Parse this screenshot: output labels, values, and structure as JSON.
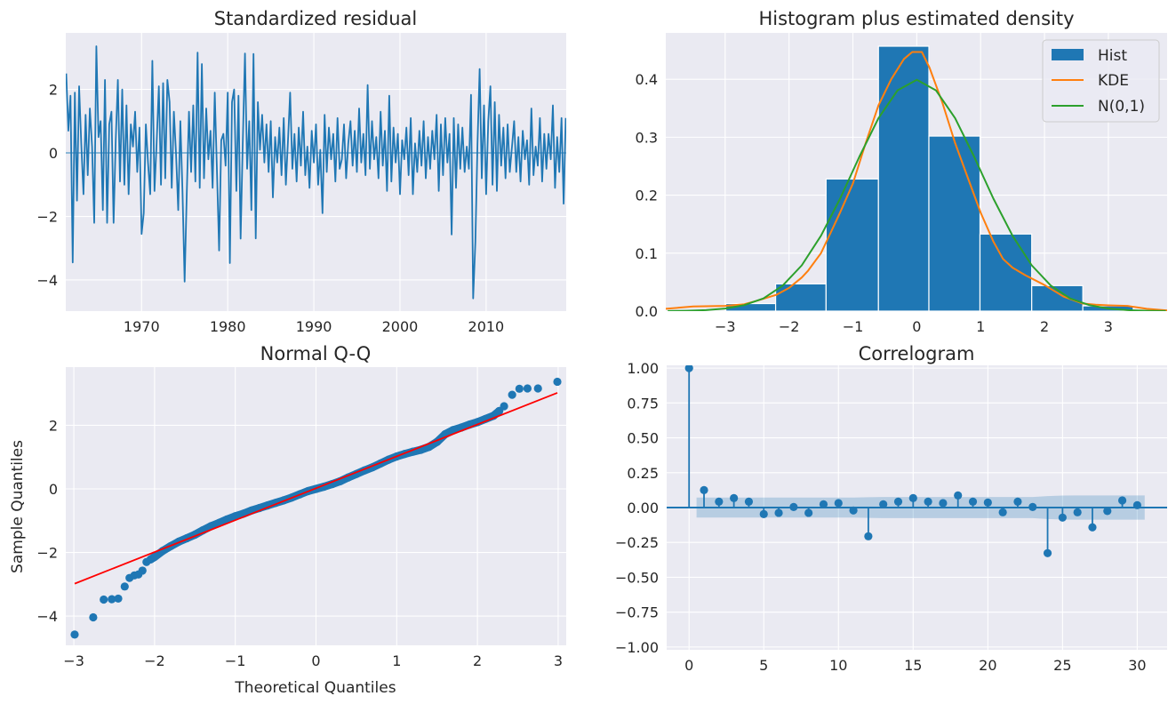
{
  "colors": {
    "background": "#eaeaf2",
    "grid": "#ffffff",
    "blue": "#1f77b4",
    "orange": "#ff7f0e",
    "green": "#2ca02c",
    "red": "#ff0000",
    "text": "#262626"
  },
  "chart_data": [
    {
      "id": "residual",
      "type": "line",
      "title": "Standardized residual",
      "xlabel": "",
      "ylabel": "",
      "xlim": [
        1961.2,
        2019.3
      ],
      "ylim": [
        -4.98,
        3.78
      ],
      "grid": true,
      "xticks": [
        1970,
        1980,
        1990,
        2000,
        2010
      ],
      "xtick_labels": [
        "1970",
        "1980",
        "1990",
        "2000",
        "2010"
      ],
      "yticks": [
        2,
        0,
        -2,
        -4
      ],
      "ytick_labels": [
        "2",
        "0",
        "−2",
        "−4"
      ],
      "x_start": 1961.25,
      "x_step": 0.25,
      "values": [
        2.5,
        0.7,
        1.8,
        -3.45,
        1.9,
        -1.5,
        2.1,
        0.3,
        -1.3,
        1.2,
        -0.7,
        1.4,
        0.2,
        -2.2,
        3.36,
        0.5,
        1.0,
        -1.8,
        2.3,
        -2.2,
        0.9,
        1.3,
        -2.2,
        0.4,
        2.3,
        -0.9,
        2.0,
        -1.0,
        1.5,
        -1.3,
        0.9,
        0.2,
        1.3,
        -0.6,
        0.8,
        -2.55,
        -1.9,
        0.9,
        -0.3,
        -1.3,
        2.9,
        -1.2,
        0.3,
        2.1,
        -1.0,
        2.2,
        -0.8,
        2.3,
        1.6,
        -1.1,
        1.3,
        0.0,
        -1.8,
        1.0,
        -1.2,
        -4.05,
        -1.3,
        1.3,
        -0.6,
        1.5,
        -0.9,
        3.16,
        -1.1,
        2.8,
        -0.8,
        1.4,
        -0.2,
        0.7,
        -1.1,
        1.9,
        -0.6,
        -3.07,
        0.4,
        0.6,
        -0.4,
        1.9,
        -3.47,
        1.6,
        2.0,
        -1.2,
        1.8,
        -2.7,
        0.3,
        3.13,
        -0.5,
        1.0,
        -1.8,
        3.12,
        -2.69,
        1.6,
        0.1,
        1.2,
        -0.3,
        0.9,
        -0.6,
        1.0,
        -1.4,
        0.5,
        -0.3,
        0.8,
        -0.7,
        1.1,
        -1.0,
        0.4,
        1.9,
        -0.5,
        0.6,
        -0.9,
        0.8,
        -0.4,
        1.3,
        -0.7,
        0.2,
        -1.1,
        0.7,
        -0.3,
        0.9,
        -1.0,
        0.1,
        -1.9,
        1.2,
        -0.6,
        0.8,
        -0.2,
        0.6,
        -0.9,
        1.1,
        -0.5,
        -0.2,
        0.9,
        -0.8,
        0.3,
        1.0,
        -0.4,
        0.7,
        -0.6,
        1.4,
        -0.3,
        0.6,
        -0.7,
        2.14,
        -0.5,
        1.0,
        -0.2,
        0.5,
        -0.8,
        1.3,
        -0.4,
        0.7,
        -1.2,
        1.8,
        -0.9,
        0.8,
        -0.3,
        0.6,
        -1.3,
        0.4,
        -0.2,
        0.8,
        -0.7,
        1.1,
        -1.3,
        0.3,
        -0.6,
        0.7,
        -0.4,
        1.0,
        -0.8,
        0.5,
        -0.5,
        0.7,
        -0.2,
        1.2,
        -1.2,
        0.9,
        -0.7,
        1.1,
        -0.3,
        0.6,
        -2.57,
        1.1,
        -1.1,
        0.9,
        -0.5,
        0.8,
        -0.6,
        0.2,
        -0.5,
        1.83,
        -4.58,
        -2.8,
        0.3,
        2.64,
        -0.8,
        1.5,
        -1.3,
        1.0,
        2.1,
        -1.0,
        1.6,
        -1.2,
        1.2,
        -0.4,
        0.8,
        -0.8,
        0.9,
        -0.6,
        0.2,
        1.0,
        -0.6,
        0.5,
        -0.9,
        0.7,
        -0.2,
        0.4,
        -1.0,
        1.4,
        -0.7,
        0.2,
        -0.4,
        1.1,
        -0.9,
        0.6,
        -0.5,
        0.6,
        -0.2,
        1.5,
        -1.1,
        0.5,
        -0.6,
        1.1,
        -1.6,
        1.1
      ],
      "reference_line": 0
    },
    {
      "id": "histogram",
      "type": "bar",
      "title": "Histogram plus estimated density",
      "xlabel": "",
      "ylabel": "",
      "xlim": [
        -3.93,
        3.92
      ],
      "ylim": [
        0,
        0.48
      ],
      "grid": true,
      "xticks": [
        -3,
        -2,
        -1,
        0,
        1,
        2,
        3
      ],
      "xtick_labels": [
        "−3",
        "−2",
        "−1",
        "0",
        "1",
        "2",
        "3"
      ],
      "yticks": [
        0.0,
        0.1,
        0.2,
        0.3,
        0.4
      ],
      "ytick_labels": [
        "0.0",
        "0.1",
        "0.2",
        "0.3",
        "0.4"
      ],
      "bin_edges": [
        -2.99,
        -2.21,
        -1.42,
        -0.6,
        0.19,
        0.99,
        1.8,
        2.6,
        3.39
      ],
      "bar_values": [
        0.013,
        0.047,
        0.228,
        0.457,
        0.302,
        0.133,
        0.044,
        0.009
      ],
      "legend_position": "upper right",
      "series": [
        {
          "name": "Hist",
          "kind": "bar",
          "color": "#1f77b4"
        },
        {
          "name": "KDE",
          "kind": "line",
          "color": "#ff7f0e",
          "points": [
            [
              -3.93,
              0.004
            ],
            [
              -3.5,
              0.008
            ],
            [
              -3.0,
              0.009
            ],
            [
              -2.7,
              0.012
            ],
            [
              -2.5,
              0.018
            ],
            [
              -2.2,
              0.028
            ],
            [
              -2.0,
              0.04
            ],
            [
              -1.8,
              0.058
            ],
            [
              -1.7,
              0.07
            ],
            [
              -1.5,
              0.1
            ],
            [
              -1.35,
              0.135
            ],
            [
              -1.2,
              0.17
            ],
            [
              -1.0,
              0.22
            ],
            [
              -0.8,
              0.29
            ],
            [
              -0.6,
              0.355
            ],
            [
              -0.4,
              0.4
            ],
            [
              -0.2,
              0.435
            ],
            [
              -0.07,
              0.447
            ],
            [
              0.08,
              0.447
            ],
            [
              0.2,
              0.42
            ],
            [
              0.4,
              0.36
            ],
            [
              0.6,
              0.29
            ],
            [
              0.8,
              0.23
            ],
            [
              1.0,
              0.17
            ],
            [
              1.2,
              0.12
            ],
            [
              1.35,
              0.09
            ],
            [
              1.5,
              0.075
            ],
            [
              1.7,
              0.062
            ],
            [
              2.0,
              0.045
            ],
            [
              2.3,
              0.025
            ],
            [
              2.6,
              0.013
            ],
            [
              2.8,
              0.011
            ],
            [
              3.0,
              0.01
            ],
            [
              3.3,
              0.009
            ],
            [
              3.6,
              0.004
            ],
            [
              3.92,
              0.001
            ]
          ]
        },
        {
          "name": "N(0,1)",
          "kind": "line",
          "color": "#2ca02c",
          "points": [
            [
              -3.9,
              0.0002
            ],
            [
              -3.6,
              0.0006
            ],
            [
              -3.3,
              0.0017
            ],
            [
              -3.0,
              0.0044
            ],
            [
              -2.7,
              0.0104
            ],
            [
              -2.4,
              0.022
            ],
            [
              -2.1,
              0.044
            ],
            [
              -1.8,
              0.079
            ],
            [
              -1.5,
              0.13
            ],
            [
              -1.2,
              0.194
            ],
            [
              -0.9,
              0.266
            ],
            [
              -0.6,
              0.333
            ],
            [
              -0.3,
              0.381
            ],
            [
              0.0,
              0.399
            ],
            [
              0.3,
              0.381
            ],
            [
              0.6,
              0.333
            ],
            [
              0.9,
              0.266
            ],
            [
              1.2,
              0.194
            ],
            [
              1.5,
              0.13
            ],
            [
              1.8,
              0.079
            ],
            [
              2.1,
              0.044
            ],
            [
              2.4,
              0.022
            ],
            [
              2.7,
              0.0104
            ],
            [
              3.0,
              0.0044
            ],
            [
              3.3,
              0.0017
            ],
            [
              3.6,
              0.0006
            ],
            [
              3.9,
              0.0002
            ]
          ]
        }
      ]
    },
    {
      "id": "qq",
      "type": "scatter",
      "title": "Normal Q-Q",
      "xlabel": "Theoretical Quantiles",
      "ylabel": "Sample Quantiles",
      "xlim": [
        -3.1,
        3.1
      ],
      "ylim": [
        -4.92,
        3.83
      ],
      "grid": true,
      "xticks": [
        -3,
        -2,
        -1,
        0,
        1,
        2,
        3
      ],
      "xtick_labels": [
        "−3",
        "−2",
        "−1",
        "0",
        "1",
        "2",
        "3"
      ],
      "yticks": [
        2,
        0,
        -2,
        -4
      ],
      "ytick_labels": [
        "2",
        "0",
        "−2",
        "−4"
      ],
      "points": [
        [
          -2.99,
          -4.58
        ],
        [
          -2.76,
          -4.04
        ],
        [
          -2.63,
          -3.48
        ],
        [
          -2.53,
          -3.47
        ],
        [
          -2.45,
          -3.45
        ],
        [
          -2.37,
          -3.07
        ],
        [
          -2.31,
          -2.8
        ],
        [
          -2.25,
          -2.72
        ],
        [
          -2.2,
          -2.69
        ],
        [
          -2.15,
          -2.57
        ],
        [
          -2.1,
          -2.3
        ],
        [
          -2.05,
          -2.22
        ],
        [
          -2.0,
          -2.14
        ],
        [
          -1.9,
          -1.95
        ],
        [
          -1.8,
          -1.8
        ],
        [
          -1.7,
          -1.66
        ],
        [
          -1.6,
          -1.55
        ],
        [
          -1.5,
          -1.44
        ],
        [
          -1.4,
          -1.3
        ],
        [
          -1.3,
          -1.17
        ],
        [
          -1.2,
          -1.07
        ],
        [
          -1.1,
          -0.96
        ],
        [
          -1.0,
          -0.86
        ],
        [
          -0.9,
          -0.78
        ],
        [
          -0.8,
          -0.68
        ],
        [
          -0.7,
          -0.6
        ],
        [
          -0.6,
          -0.52
        ],
        [
          -0.5,
          -0.44
        ],
        [
          -0.4,
          -0.36
        ],
        [
          -0.3,
          -0.27
        ],
        [
          -0.2,
          -0.17
        ],
        [
          -0.1,
          -0.07
        ],
        [
          0.0,
          0.0
        ],
        [
          0.1,
          0.07
        ],
        [
          0.2,
          0.15
        ],
        [
          0.3,
          0.24
        ],
        [
          0.4,
          0.36
        ],
        [
          0.5,
          0.47
        ],
        [
          0.6,
          0.58
        ],
        [
          0.7,
          0.68
        ],
        [
          0.8,
          0.8
        ],
        [
          0.9,
          0.92
        ],
        [
          1.0,
          1.02
        ],
        [
          1.1,
          1.1
        ],
        [
          1.2,
          1.17
        ],
        [
          1.3,
          1.23
        ],
        [
          1.4,
          1.32
        ],
        [
          1.5,
          1.48
        ],
        [
          1.6,
          1.72
        ],
        [
          1.7,
          1.85
        ],
        [
          1.8,
          1.93
        ],
        [
          1.9,
          2.02
        ],
        [
          2.0,
          2.1
        ],
        [
          2.1,
          2.2
        ],
        [
          2.2,
          2.3
        ],
        [
          2.27,
          2.45
        ],
        [
          2.33,
          2.6
        ],
        [
          2.43,
          2.96
        ],
        [
          2.52,
          3.15
        ],
        [
          2.62,
          3.16
        ],
        [
          2.75,
          3.16
        ],
        [
          2.99,
          3.37
        ]
      ],
      "reference_line": [
        [
          -2.99,
          -2.98
        ],
        [
          2.99,
          3.02
        ]
      ],
      "reference_color": "#ff0000"
    },
    {
      "id": "correlogram",
      "type": "bar",
      "title": "Correlogram",
      "xlabel": "",
      "ylabel": "",
      "xlim": [
        -1.5,
        32
      ],
      "ylim": [
        -1.02,
        1.02
      ],
      "grid": true,
      "xticks": [
        0,
        5,
        10,
        15,
        20,
        25,
        30
      ],
      "xtick_labels": [
        "0",
        "5",
        "10",
        "15",
        "20",
        "25",
        "30"
      ],
      "yticks": [
        1.0,
        0.75,
        0.5,
        0.25,
        0.0,
        -0.25,
        -0.5,
        -0.75,
        -1.0
      ],
      "ytick_labels": [
        "1.00",
        "0.75",
        "0.50",
        "0.25",
        "0.00",
        "−0.25",
        "−0.50",
        "−0.75",
        "−1.00"
      ],
      "lags": [
        0,
        1,
        2,
        3,
        4,
        5,
        6,
        7,
        8,
        9,
        10,
        11,
        12,
        13,
        14,
        15,
        16,
        17,
        18,
        19,
        20,
        21,
        22,
        23,
        24,
        25,
        26,
        27,
        28,
        29,
        30
      ],
      "acf": [
        1.0,
        0.125,
        0.042,
        0.068,
        0.042,
        -0.047,
        -0.038,
        0.004,
        -0.038,
        0.023,
        0.032,
        -0.021,
        -0.206,
        0.023,
        0.042,
        0.068,
        0.042,
        0.032,
        0.087,
        0.042,
        0.036,
        -0.034,
        0.042,
        0.004,
        -0.327,
        -0.072,
        -0.034,
        -0.142,
        -0.025,
        0.051,
        0.017
      ],
      "confidence_halfwidth": [
        null,
        0.072,
        0.072,
        0.072,
        0.072,
        0.072,
        0.072,
        0.072,
        0.072,
        0.072,
        0.072,
        0.072,
        0.074,
        0.076,
        0.076,
        0.076,
        0.076,
        0.076,
        0.076,
        0.076,
        0.076,
        0.076,
        0.076,
        0.076,
        0.082,
        0.086,
        0.087,
        0.087,
        0.087,
        0.087,
        0.087
      ]
    }
  ]
}
